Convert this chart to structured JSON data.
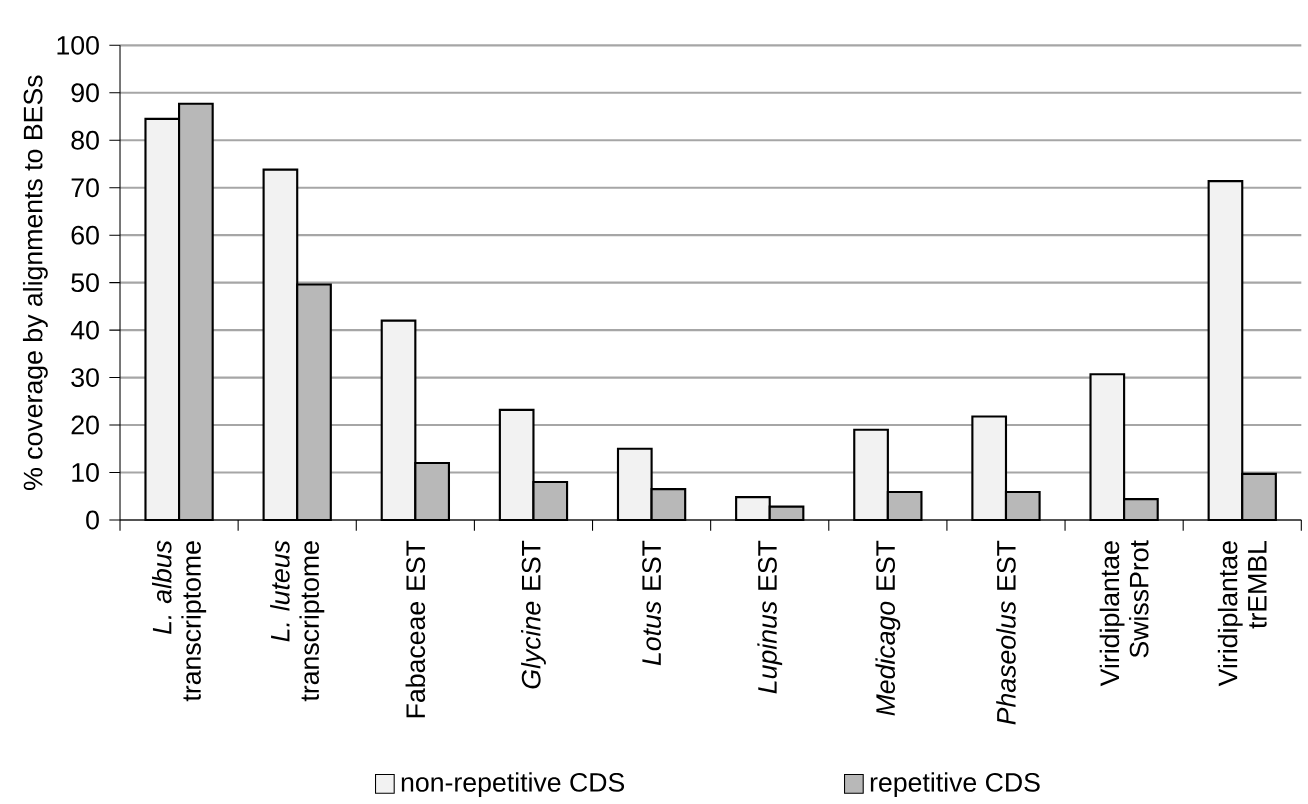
{
  "chart_data": {
    "type": "bar",
    "ylabel": "% coverage by alignments to BESs",
    "categories": [
      "*L. albus* transcriptome",
      "*L. luteus* transcriptome",
      "Fabaceae EST",
      "*Glycine* EST",
      "*Lotus* EST",
      "*Lupinus* EST",
      "*Medicago* EST",
      "*Phaseolus* EST",
      "Viridiplantae SwissProt",
      "Viridiplantae trEMBL"
    ],
    "series": [
      {
        "name": "non-repetitive CDS",
        "color": "#f2f2f2",
        "values": [
          84.5,
          73.8,
          42,
          23.2,
          15,
          4.8,
          19,
          21.8,
          30.7,
          71.4
        ]
      },
      {
        "name": "repetitive CDS",
        "color": "#b8b8b8",
        "values": [
          87.7,
          49.6,
          12,
          8,
          6.5,
          2.8,
          5.9,
          5.9,
          4.4,
          9.7
        ]
      }
    ],
    "ylim": [
      0,
      100
    ],
    "yticks": [
      0,
      10,
      20,
      30,
      40,
      50,
      60,
      70,
      80,
      90,
      100
    ],
    "grid": "y",
    "legend": "bottom"
  }
}
